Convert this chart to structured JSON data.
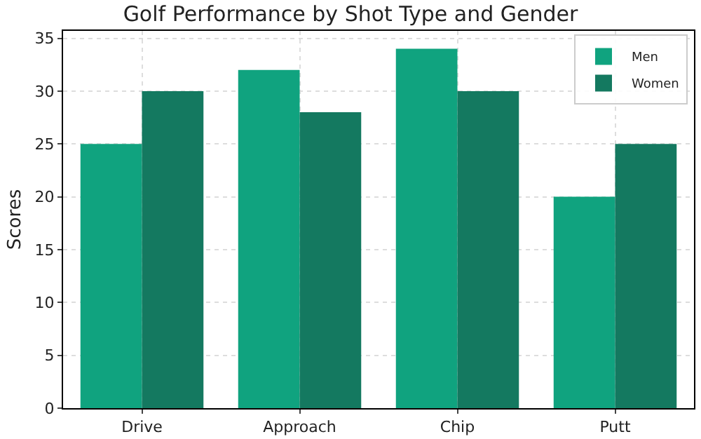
{
  "chart_data": {
    "type": "bar",
    "title": "Golf Performance by Shot Type and Gender",
    "ylabel": "Scores",
    "categories": [
      "Drive",
      "Approach",
      "Chip",
      "Putt"
    ],
    "series": [
      {
        "name": "Men",
        "color": "#10a37f",
        "values": [
          25,
          32,
          34,
          20
        ]
      },
      {
        "name": "Women",
        "color": "#147960",
        "values": [
          30,
          28,
          30,
          25
        ]
      }
    ],
    "ylim": [
      0,
      35.7
    ],
    "yticks": [
      0,
      5,
      10,
      15,
      20,
      25,
      30,
      35
    ],
    "grid": true,
    "legend": "top right"
  }
}
